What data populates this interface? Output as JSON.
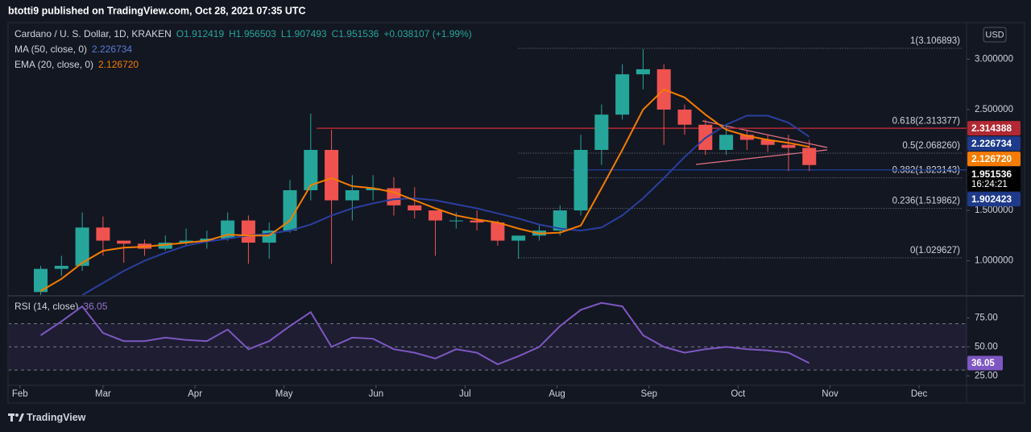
{
  "header": {
    "publisher": "btotti9 published on TradingView.com, Oct 28, 2021 07:35 UTC",
    "brand": "TradingView",
    "currency_button": "USD"
  },
  "chart_data": [
    {
      "type": "candlestick",
      "title": "Cardano / U. S. Dollar, 1D, KRAKEN",
      "ohlc_legend": [
        "O1.912419",
        "H1.956503",
        "L1.907493",
        "C1.951536",
        "+0.038107 (+1.99%)"
      ],
      "x": [
        "2021-02-08",
        "2021-02-15",
        "2021-02-22",
        "2021-03-01",
        "2021-03-08",
        "2021-03-15",
        "2021-03-22",
        "2021-03-29",
        "2021-04-05",
        "2021-04-12",
        "2021-04-19",
        "2021-04-26",
        "2021-05-03",
        "2021-05-10",
        "2021-05-17",
        "2021-05-24",
        "2021-05-31",
        "2021-06-07",
        "2021-06-14",
        "2021-06-21",
        "2021-06-28",
        "2021-07-05",
        "2021-07-12",
        "2021-07-19",
        "2021-07-26",
        "2021-08-02",
        "2021-08-09",
        "2021-08-16",
        "2021-08-23",
        "2021-08-30",
        "2021-09-06",
        "2021-09-13",
        "2021-09-20",
        "2021-09-27",
        "2021-10-04",
        "2021-10-11",
        "2021-10-18",
        "2021-10-25"
      ],
      "open": [
        0.69,
        0.92,
        0.95,
        1.33,
        1.2,
        1.17,
        1.12,
        1.18,
        1.2,
        1.22,
        1.4,
        1.18,
        1.3,
        1.7,
        2.1,
        1.6,
        1.7,
        1.72,
        1.55,
        1.5,
        1.4,
        1.4,
        1.38,
        1.2,
        1.25,
        1.3,
        1.5,
        2.1,
        2.45,
        2.85,
        2.9,
        2.5,
        2.35,
        2.1,
        2.25,
        2.2,
        2.15,
        2.12
      ],
      "high": [
        0.95,
        1.05,
        1.48,
        1.44,
        1.2,
        1.21,
        1.25,
        1.32,
        1.3,
        1.48,
        1.45,
        1.38,
        1.8,
        2.46,
        2.3,
        1.85,
        1.85,
        1.83,
        1.73,
        1.5,
        1.48,
        1.5,
        1.4,
        1.25,
        1.35,
        1.55,
        2.25,
        2.55,
        2.95,
        3.1,
        2.95,
        2.55,
        2.4,
        2.35,
        2.3,
        2.25,
        2.25,
        2.2
      ],
      "low": [
        0.65,
        0.85,
        0.9,
        1.05,
        0.98,
        1.05,
        1.1,
        1.15,
        1.12,
        1.2,
        0.97,
        1.02,
        1.28,
        1.6,
        0.97,
        1.4,
        1.6,
        1.45,
        1.42,
        1.05,
        1.32,
        1.3,
        1.15,
        1.02,
        1.2,
        1.25,
        1.45,
        1.95,
        2.4,
        2.7,
        2.15,
        2.25,
        2.05,
        2.05,
        2.1,
        2.08,
        1.89,
        1.89
      ],
      "close": [
        0.92,
        0.95,
        1.33,
        1.2,
        1.17,
        1.12,
        1.18,
        1.2,
        1.22,
        1.4,
        1.18,
        1.3,
        1.7,
        2.1,
        1.6,
        1.7,
        1.72,
        1.55,
        1.5,
        1.4,
        1.4,
        1.38,
        1.2,
        1.25,
        1.3,
        1.5,
        2.1,
        2.45,
        2.85,
        2.9,
        2.5,
        2.35,
        2.1,
        2.25,
        2.2,
        2.15,
        2.12,
        1.95
      ],
      "up_color": "#26a69a",
      "down_color": "#ef5350",
      "series": [
        {
          "name": "MA (50, close, 0)",
          "last": "2.226734",
          "color": "#2a3f9e",
          "values": [
            null,
            null,
            0.66,
            0.78,
            0.9,
            1.0,
            1.08,
            1.15,
            1.19,
            1.22,
            1.25,
            1.27,
            1.3,
            1.36,
            1.45,
            1.52,
            1.57,
            1.61,
            1.62,
            1.6,
            1.56,
            1.52,
            1.47,
            1.42,
            1.36,
            1.32,
            1.3,
            1.33,
            1.45,
            1.62,
            1.82,
            2.03,
            2.22,
            2.35,
            2.44,
            2.44,
            2.37,
            2.23
          ]
        },
        {
          "name": "EMA (20, close, 0)",
          "last": "2.126720",
          "color": "#f57c00",
          "values": [
            0.7,
            0.82,
            0.98,
            1.1,
            1.13,
            1.14,
            1.16,
            1.18,
            1.2,
            1.26,
            1.25,
            1.25,
            1.4,
            1.75,
            1.82,
            1.74,
            1.72,
            1.68,
            1.6,
            1.52,
            1.45,
            1.41,
            1.38,
            1.32,
            1.27,
            1.28,
            1.35,
            1.72,
            2.1,
            2.5,
            2.7,
            2.62,
            2.45,
            2.3,
            2.24,
            2.2,
            2.17,
            2.13
          ]
        }
      ],
      "hlines": [
        {
          "value": 2.314388,
          "color": "#b22833",
          "from": "2021-05-12"
        },
        {
          "value": 1.902423,
          "color": "#1e3a8a",
          "from": "2021-08-06"
        }
      ],
      "fib_from": "2021-07-19",
      "fib_levels": [
        {
          "label": "1(3.106893)",
          "value": 3.106893
        },
        {
          "label": "0.618(2.313377)",
          "value": 2.313377
        },
        {
          "label": "0.5(2.068260)",
          "value": 2.06826
        },
        {
          "label": "0.382(1.823143)",
          "value": 1.823143
        },
        {
          "label": "0.236(1.519862)",
          "value": 1.519862
        },
        {
          "label": "0(1.029627)",
          "value": 1.029627
        }
      ],
      "price_labels": [
        {
          "value": 2.314388,
          "label": "2.314388",
          "color": "#b22833"
        },
        {
          "value": 2.226734,
          "label": "2.226734",
          "color": "#1e3a8a"
        },
        {
          "value": 2.12672,
          "label": "2.126720",
          "color": "#f57c00"
        },
        {
          "value": 1.951536,
          "label": "1.951536",
          "color": "#000000",
          "countdown": "16:24:21"
        },
        {
          "value": 1.902423,
          "label": "1.902423",
          "color": "#1e3a8a"
        }
      ],
      "xlim": [
        "2021-01-28",
        "2021-12-17"
      ],
      "xticks": [
        {
          "value": "2021-02-01",
          "label": "Feb"
        },
        {
          "value": "2021-03-01",
          "label": "Mar"
        },
        {
          "value": "2021-04-01",
          "label": "Apr"
        },
        {
          "value": "2021-05-01",
          "label": "May"
        },
        {
          "value": "2021-06-01",
          "label": "Jun"
        },
        {
          "value": "2021-07-01",
          "label": "Jul"
        },
        {
          "value": "2021-08-01",
          "label": "Aug"
        },
        {
          "value": "2021-09-01",
          "label": "Sep"
        },
        {
          "value": "2021-10-01",
          "label": "Oct"
        },
        {
          "value": "2021-11-01",
          "label": "Nov"
        },
        {
          "value": "2021-12-01",
          "label": "Dec"
        }
      ],
      "ylim": [
        0.661,
        3.363
      ],
      "yticks": [
        {
          "value": 3,
          "label": "3.000000"
        },
        {
          "value": 2.5,
          "label": "2.500000"
        },
        {
          "value": 1.5,
          "label": "1.500000"
        },
        {
          "value": 1,
          "label": "1.000000"
        }
      ]
    },
    {
      "type": "line",
      "name": "RSI (14, close)",
      "current": 36.05,
      "color": "#7e57c2",
      "values": [
        60,
        72,
        85,
        62,
        55,
        55,
        58,
        56,
        55,
        65,
        48,
        55,
        68,
        80,
        50,
        58,
        57,
        48,
        45,
        40,
        48,
        45,
        35,
        42,
        50,
        68,
        82,
        88,
        85,
        60,
        50,
        45,
        48,
        50,
        48,
        47,
        45,
        36.05
      ],
      "levels": [
        70,
        50,
        30
      ],
      "ylim": [
        17.6,
        93.4
      ],
      "yticks": [
        {
          "value": 75,
          "label": "75.00"
        },
        {
          "value": 50,
          "label": "50.00"
        },
        {
          "value": 25,
          "label": "25.00"
        }
      ]
    }
  ]
}
